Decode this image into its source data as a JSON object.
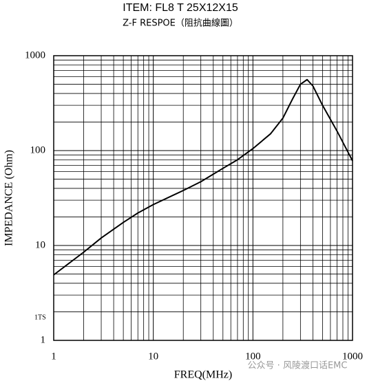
{
  "chart_data": {
    "type": "line",
    "title": "ITEM:   FL8 T 25X12X15",
    "subtitle": "Z-F RESPOE（阻抗曲線圖）",
    "x_label": "FREQ(MHz)",
    "y_label": "IMPEDANCE (Ohm)",
    "annotation": "1TS",
    "watermark": "公众号 · 风陵渡口话EMC",
    "x": [
      1,
      2,
      3,
      5,
      7,
      10,
      20,
      30,
      50,
      70,
      100,
      150,
      200,
      250,
      300,
      350,
      400,
      500,
      700,
      1000
    ],
    "values": [
      4.9,
      8.5,
      12,
      17.5,
      22,
      27,
      38,
      47,
      65,
      80,
      105,
      150,
      220,
      350,
      500,
      560,
      480,
      300,
      160,
      78
    ],
    "color": "#000000",
    "log_x": true,
    "log_y": true,
    "grid": true,
    "xlim": [
      1,
      1000
    ],
    "ylim": [
      1,
      1000
    ],
    "xticks": [
      1,
      10,
      100,
      1000
    ],
    "yticks": [
      1,
      10,
      100,
      1000
    ]
  }
}
